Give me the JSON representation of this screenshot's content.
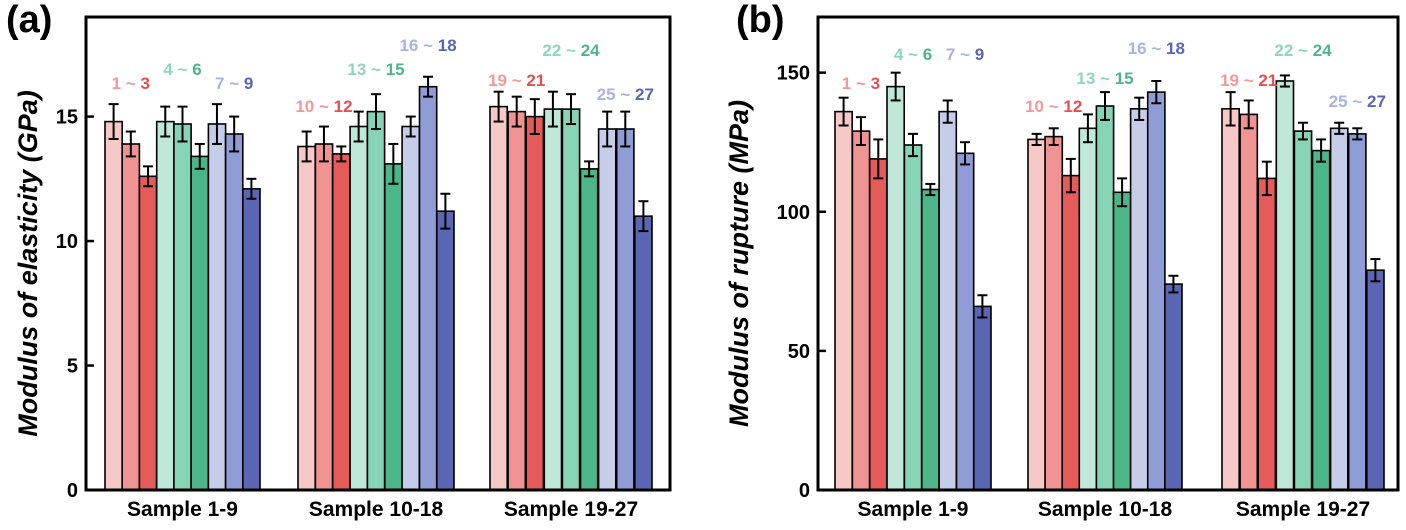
{
  "palette": [
    "#f6c9c6",
    "#ef9393",
    "#e45b5a",
    "#bfe8d9",
    "#86d3b6",
    "#4cb58a",
    "#c6cde9",
    "#8f9cd6",
    "#5a66b4"
  ],
  "chart_data": [
    {
      "panel": "(a)",
      "type": "bar",
      "ylabel": "Modulus of elasticity (GPa)",
      "ylim": [
        0,
        19
      ],
      "yticks": [
        0,
        5,
        10,
        15
      ],
      "categories": [
        "Sample 1-9",
        "Sample 10-18",
        "Sample 19-27"
      ],
      "groups": [
        {
          "name": "Sample 1-9",
          "values": [
            14.8,
            13.9,
            12.6,
            14.8,
            14.7,
            13.4,
            14.7,
            14.3,
            12.1
          ],
          "errors": [
            0.7,
            0.5,
            0.4,
            0.6,
            0.7,
            0.5,
            0.8,
            0.7,
            0.4
          ]
        },
        {
          "name": "Sample 10-18",
          "values": [
            13.8,
            13.9,
            13.5,
            14.6,
            15.2,
            13.1,
            14.6,
            16.2,
            11.2
          ],
          "errors": [
            0.6,
            0.7,
            0.3,
            0.6,
            0.7,
            0.8,
            0.4,
            0.4,
            0.7
          ]
        },
        {
          "name": "Sample 19-27",
          "values": [
            15.4,
            15.2,
            15.0,
            15.3,
            15.3,
            12.9,
            14.5,
            14.5,
            11.0
          ],
          "errors": [
            0.6,
            0.6,
            0.7,
            0.7,
            0.6,
            0.3,
            0.7,
            0.7,
            0.6
          ]
        }
      ],
      "range_labels": [
        {
          "parts": [
            "1",
            "3"
          ],
          "colors": [
            "#f09a98",
            "#e4504f"
          ]
        },
        {
          "parts": [
            "4",
            "6"
          ],
          "colors": [
            "#8dd6bb",
            "#4cb58a"
          ]
        },
        {
          "parts": [
            "7",
            "9"
          ],
          "colors": [
            "#a9b3e0",
            "#5a66b4"
          ]
        },
        {
          "parts": [
            "10",
            "12"
          ],
          "colors": [
            "#f09a98",
            "#e4504f"
          ]
        },
        {
          "parts": [
            "13",
            "15"
          ],
          "colors": [
            "#8dd6bb",
            "#4cb58a"
          ]
        },
        {
          "parts": [
            "16",
            "18"
          ],
          "colors": [
            "#a9b3e0",
            "#5a66b4"
          ]
        },
        {
          "parts": [
            "19",
            "21"
          ],
          "colors": [
            "#f09a98",
            "#e4504f"
          ]
        },
        {
          "parts": [
            "22",
            "24"
          ],
          "colors": [
            "#8dd6bb",
            "#4cb58a"
          ]
        },
        {
          "parts": [
            "25",
            "27"
          ],
          "colors": [
            "#a9b3e0",
            "#5a66b4"
          ]
        }
      ]
    },
    {
      "panel": "(b)",
      "type": "bar",
      "ylabel": "Modulus of rupture (MPa)",
      "ylim": [
        0,
        170
      ],
      "yticks": [
        0,
        50,
        100,
        150
      ],
      "categories": [
        "Sample 1-9",
        "Sample 10-18",
        "Sample 19-27"
      ],
      "groups": [
        {
          "name": "Sample 1-9",
          "values": [
            136,
            129,
            119,
            145,
            124,
            108,
            136,
            121,
            66
          ],
          "errors": [
            5,
            5,
            7,
            5,
            4,
            2,
            4,
            4,
            4
          ]
        },
        {
          "name": "Sample 10-18",
          "values": [
            126,
            127,
            113,
            130,
            138,
            107,
            137,
            143,
            74
          ],
          "errors": [
            2,
            3,
            6,
            5,
            5,
            5,
            4,
            4,
            3
          ]
        },
        {
          "name": "Sample 19-27",
          "values": [
            137,
            135,
            112,
            147,
            129,
            122,
            130,
            128,
            79
          ],
          "errors": [
            6,
            5,
            6,
            2,
            3,
            4,
            2,
            2,
            4
          ]
        }
      ],
      "range_labels": [
        {
          "parts": [
            "1",
            "3"
          ],
          "colors": [
            "#f09a98",
            "#e4504f"
          ]
        },
        {
          "parts": [
            "4",
            "6"
          ],
          "colors": [
            "#8dd6bb",
            "#4cb58a"
          ]
        },
        {
          "parts": [
            "7",
            "9"
          ],
          "colors": [
            "#a9b3e0",
            "#5a66b4"
          ]
        },
        {
          "parts": [
            "10",
            "12"
          ],
          "colors": [
            "#f09a98",
            "#e4504f"
          ]
        },
        {
          "parts": [
            "13",
            "15"
          ],
          "colors": [
            "#8dd6bb",
            "#4cb58a"
          ]
        },
        {
          "parts": [
            "16",
            "18"
          ],
          "colors": [
            "#a9b3e0",
            "#5a66b4"
          ]
        },
        {
          "parts": [
            "19",
            "21"
          ],
          "colors": [
            "#f09a98",
            "#e4504f"
          ]
        },
        {
          "parts": [
            "22",
            "24"
          ],
          "colors": [
            "#8dd6bb",
            "#4cb58a"
          ]
        },
        {
          "parts": [
            "25",
            "27"
          ],
          "colors": [
            "#a9b3e0",
            "#5a66b4"
          ]
        }
      ]
    }
  ]
}
